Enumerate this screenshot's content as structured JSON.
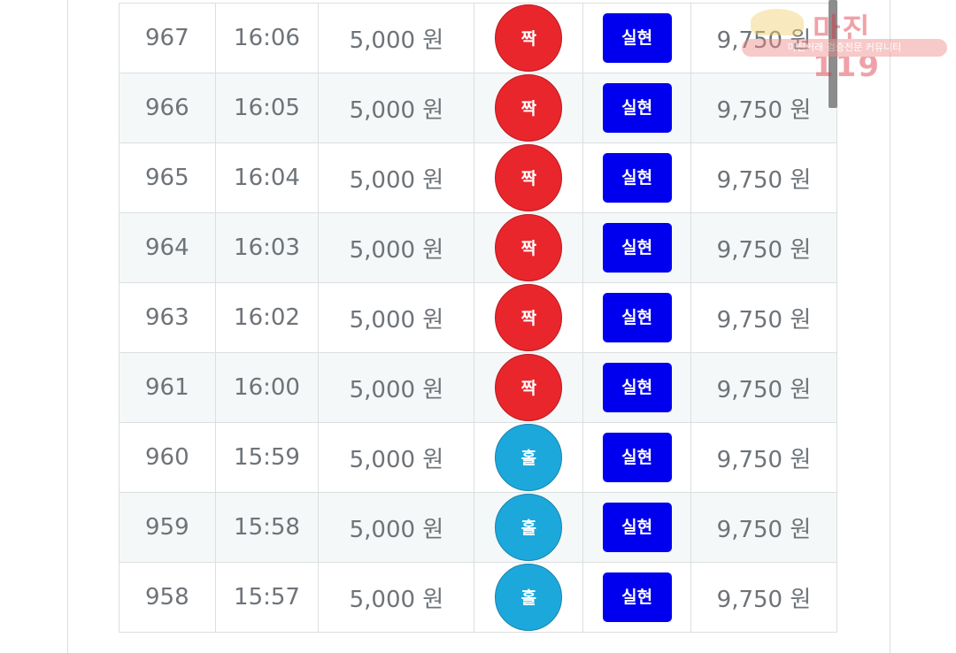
{
  "rows": [
    {
      "no": "967",
      "time": "16:06",
      "amount": "5,000 원",
      "result": "짝",
      "status": "실현",
      "payout": "9,750 원"
    },
    {
      "no": "966",
      "time": "16:05",
      "amount": "5,000 원",
      "result": "짝",
      "status": "실현",
      "payout": "9,750 원"
    },
    {
      "no": "965",
      "time": "16:04",
      "amount": "5,000 원",
      "result": "짝",
      "status": "실현",
      "payout": "9,750 원"
    },
    {
      "no": "964",
      "time": "16:03",
      "amount": "5,000 원",
      "result": "짝",
      "status": "실현",
      "payout": "9,750 원"
    },
    {
      "no": "963",
      "time": "16:02",
      "amount": "5,000 원",
      "result": "짝",
      "status": "실현",
      "payout": "9,750 원"
    },
    {
      "no": "961",
      "time": "16:00",
      "amount": "5,000 원",
      "result": "짝",
      "status": "실현",
      "payout": "9,750 원"
    },
    {
      "no": "960",
      "time": "15:59",
      "amount": "5,000 원",
      "result": "홀",
      "status": "실현",
      "payout": "9,750 원"
    },
    {
      "no": "959",
      "time": "15:58",
      "amount": "5,000 원",
      "result": "홀",
      "status": "실현",
      "payout": "9,750 원"
    },
    {
      "no": "958",
      "time": "15:57",
      "amount": "5,000 원",
      "result": "홀",
      "status": "실현",
      "payout": "9,750 원"
    }
  ],
  "colors": {
    "짝": "#e8262b",
    "홀": "#1da8dc",
    "button": "#0000ee"
  },
  "watermark": {
    "logo": "마진 119",
    "tagline": "마진거래 검증전문 커뮤니티"
  }
}
